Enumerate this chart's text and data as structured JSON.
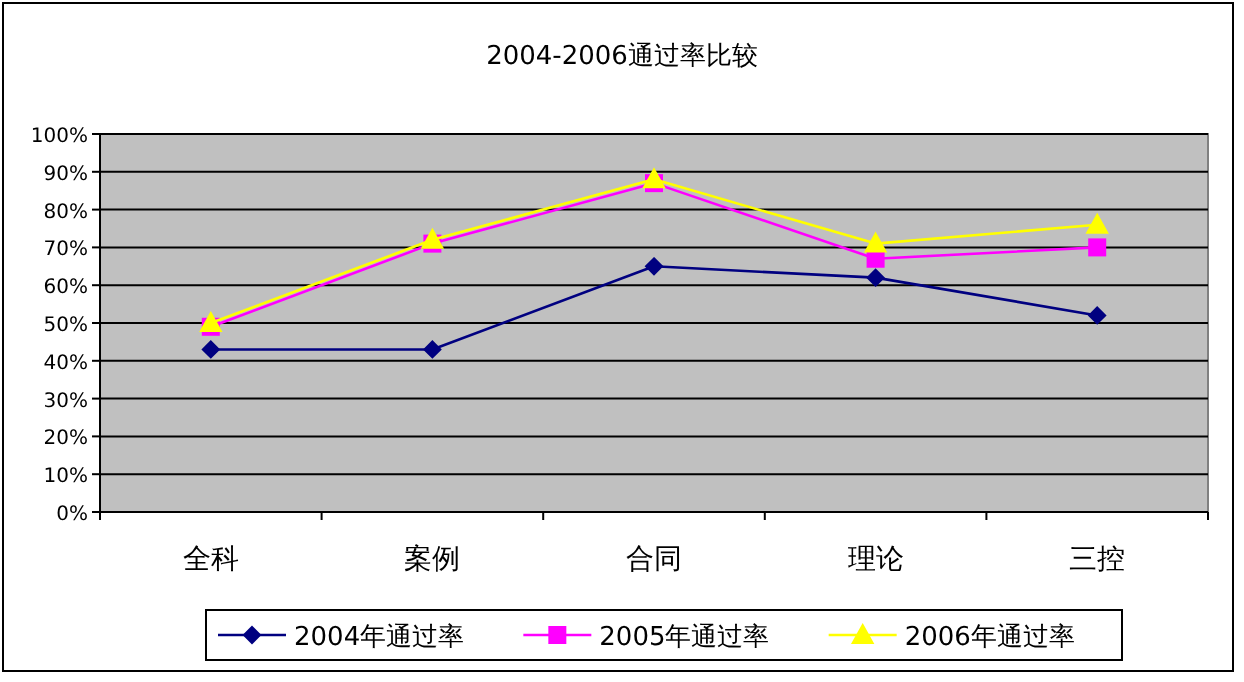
{
  "chart_data": {
    "type": "line",
    "title": "2004-2006通过率比较",
    "categories": [
      "全科",
      "案例",
      "合同",
      "理论",
      "三控"
    ],
    "series": [
      {
        "name": "2004年通过率",
        "color": "#000080",
        "marker": "diamond",
        "values": [
          43,
          43,
          65,
          62,
          52
        ]
      },
      {
        "name": "2005年通过率",
        "color": "#ff00ff",
        "marker": "square",
        "values": [
          49,
          71,
          87,
          67,
          70
        ]
      },
      {
        "name": "2006年通过率",
        "color": "#ffff00",
        "marker": "triangle",
        "values": [
          50,
          72,
          88,
          71,
          76
        ]
      }
    ],
    "ylim": [
      0,
      100
    ],
    "yticks": [
      {
        "value": 0,
        "label": "0%"
      },
      {
        "value": 10,
        "label": "10%"
      },
      {
        "value": 20,
        "label": "20%"
      },
      {
        "value": 30,
        "label": "30%"
      },
      {
        "value": 40,
        "label": "40%"
      },
      {
        "value": 50,
        "label": "50%"
      },
      {
        "value": 60,
        "label": "60%"
      },
      {
        "value": 70,
        "label": "70%"
      },
      {
        "value": 80,
        "label": "80%"
      },
      {
        "value": 90,
        "label": "90%"
      },
      {
        "value": 100,
        "label": "100%"
      }
    ],
    "grid": "y",
    "legend": "bottom"
  }
}
